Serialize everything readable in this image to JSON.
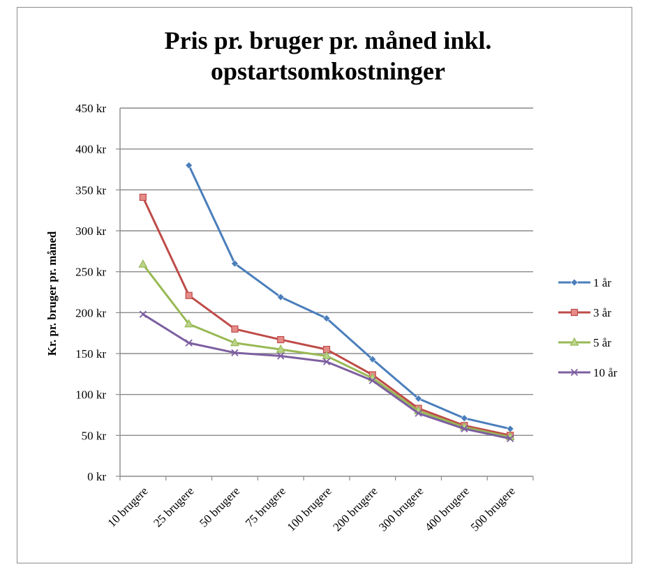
{
  "chart_data": {
    "type": "line",
    "title_lines": [
      "Pris pr. bruger pr. måned inkl.",
      "opstartsomkostninger"
    ],
    "xlabel": "",
    "ylabel": "Kr. pr. bruger pr. måned",
    "categories": [
      "10 brugere",
      "25 brugere",
      "50 brugere",
      "75 brugere",
      "100 brugere",
      "200 brugere",
      "300 brugere",
      "400 brugere",
      "500 brugere"
    ],
    "ylim": [
      0,
      450
    ],
    "yticks": [
      0,
      50,
      100,
      150,
      200,
      250,
      300,
      350,
      400,
      450
    ],
    "ytick_labels": [
      "0 kr",
      "50 kr",
      "100 kr",
      "150 kr",
      "200 kr",
      "250 kr",
      "300 kr",
      "350 kr",
      "400 kr",
      "450 kr"
    ],
    "grid": true,
    "legend_position": "right",
    "series": [
      {
        "name": "1 år",
        "color": "#4a7ebb",
        "marker": "diamond",
        "values": [
          null,
          380,
          260,
          219,
          193,
          143,
          95,
          71,
          58
        ]
      },
      {
        "name": "3 år",
        "color": "#be4b48",
        "marker": "square",
        "values": [
          341,
          221,
          180,
          167,
          155,
          124,
          83,
          62,
          50
        ]
      },
      {
        "name": "5 år",
        "color": "#98b954",
        "marker": "triangle",
        "values": [
          259,
          186,
          163,
          155,
          147,
          120,
          80,
          60,
          48
        ]
      },
      {
        "name": "10 år",
        "color": "#7d5fa0",
        "marker": "x",
        "values": [
          198,
          163,
          151,
          147,
          140,
          117,
          77,
          58,
          46
        ]
      }
    ]
  }
}
